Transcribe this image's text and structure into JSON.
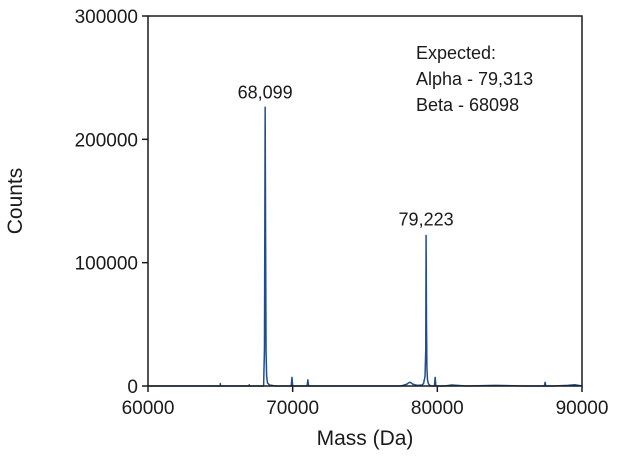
{
  "chart_data": {
    "type": "line",
    "title": "",
    "xlabel": "Mass (Da)",
    "ylabel": "Counts",
    "xlim": [
      60000,
      90000
    ],
    "ylim": [
      0,
      300000
    ],
    "x_ticks": [
      60000,
      70000,
      80000,
      90000
    ],
    "y_ticks": [
      0,
      100000,
      200000,
      300000
    ],
    "x_tick_labels": [
      "60000",
      "70000",
      "80000",
      "90000"
    ],
    "y_tick_labels": [
      "0",
      "100000",
      "200000",
      "300000"
    ],
    "grid": false,
    "legend": "none",
    "line_color": "#1f4e8c",
    "series": [
      {
        "x": [
          60000,
          64990,
          65000,
          65010,
          66990,
          67000,
          67010,
          67990,
          68000,
          68050,
          68099,
          68130,
          68160,
          68200,
          68260,
          68400,
          68800,
          69900,
          69950,
          70000,
          70050,
          71000,
          71050,
          71100,
          72000,
          75000,
          77500,
          77900,
          78000,
          78100,
          78200,
          78300,
          78600,
          78950,
          79050,
          79150,
          79200,
          79223,
          79250,
          79280,
          79320,
          79380,
          79450,
          79600,
          79800,
          79850,
          79900,
          80500,
          81000,
          82000,
          84000,
          86000,
          87400,
          87450,
          87500,
          88000,
          89000,
          89500,
          90000
        ],
        "y": [
          0,
          0,
          2000,
          0,
          0,
          1000,
          0,
          0,
          4000,
          30000,
          226000,
          120000,
          28000,
          8000,
          2500,
          800,
          0,
          0,
          7000,
          0,
          0,
          0,
          5000,
          0,
          0,
          0,
          0,
          1500,
          2500,
          3000,
          2500,
          1500,
          500,
          800,
          2000,
          8000,
          30000,
          122000,
          52000,
          15000,
          5000,
          2000,
          800,
          0,
          0,
          7000,
          0,
          0,
          800,
          0,
          500,
          0,
          0,
          3000,
          0,
          0,
          500,
          1000,
          0
        ]
      }
    ],
    "annotations": [
      {
        "text": "68,099",
        "x": 68099,
        "y": 233000
      },
      {
        "text": "79,223",
        "x": 79223,
        "y": 130000
      }
    ],
    "note_lines": [
      "Expected:",
      "Alpha - 79,313",
      "Beta - 68098"
    ]
  }
}
